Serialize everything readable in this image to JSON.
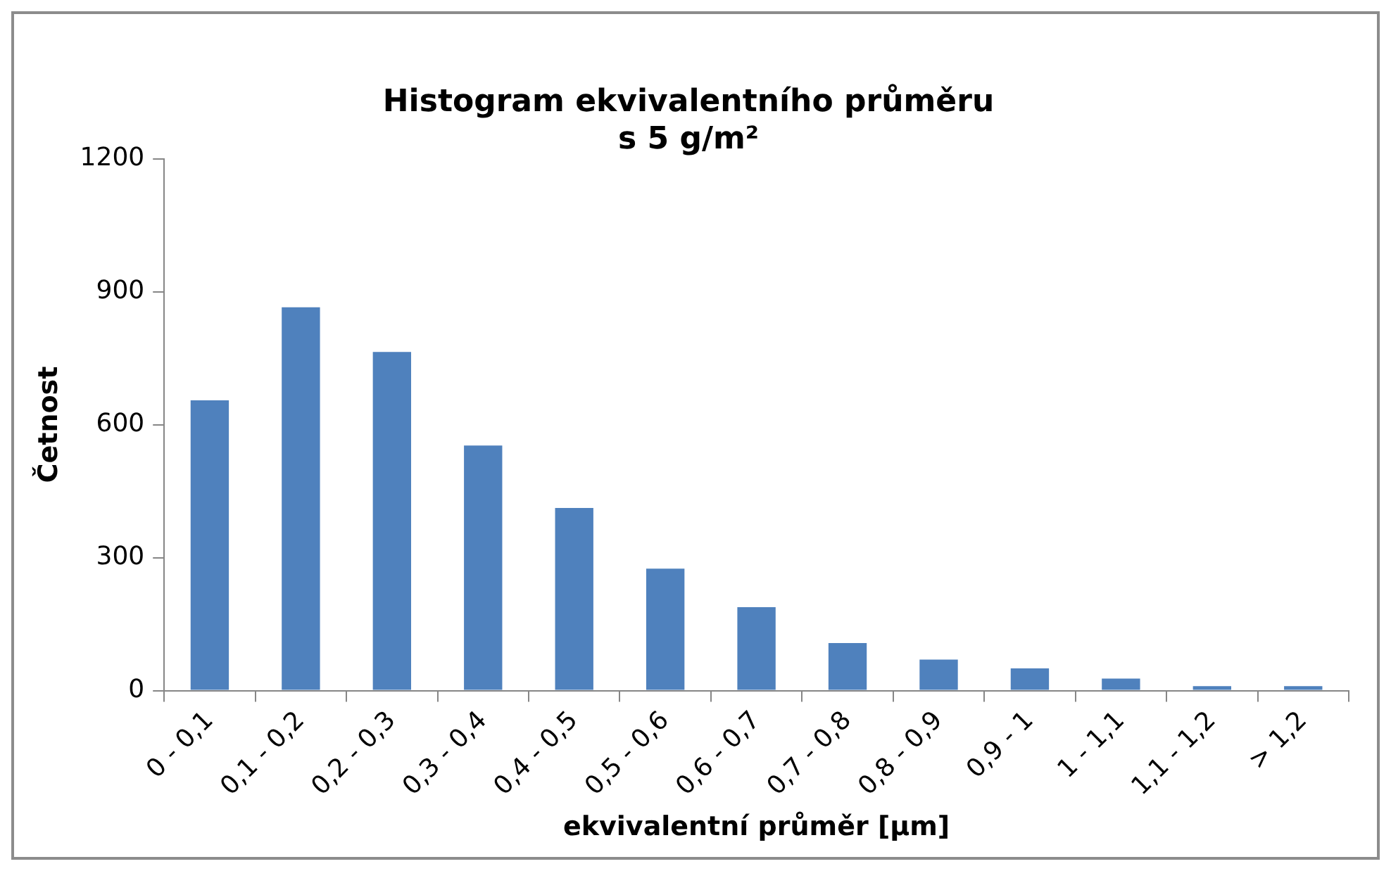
{
  "chart_data": {
    "type": "bar",
    "title": "Histogram ekvivalentního průměru\ns 5 g/m²",
    "xlabel": "ekvivalentní průměr [μm]",
    "ylabel": "Četnost",
    "categories": [
      "0 - 0,1",
      "0,1 - 0,2",
      "0,2 - 0,3",
      "0,3 - 0,4",
      "0,4 - 0,5",
      "0,5 - 0,6",
      "0,6 - 0,7",
      "0,7 - 0,8",
      "0,8 - 0,9",
      "0,9 - 1",
      "1 - 1,1",
      "1,1 - 1,2",
      "> 1,2"
    ],
    "values": [
      655,
      865,
      764,
      553,
      412,
      275,
      188,
      107,
      70,
      50,
      27,
      10,
      10
    ],
    "color": "#4f81bd",
    "ylim": [
      0,
      1200
    ],
    "yticks": [
      0,
      300,
      600,
      900,
      1200
    ],
    "grid": false,
    "legend": false
  }
}
